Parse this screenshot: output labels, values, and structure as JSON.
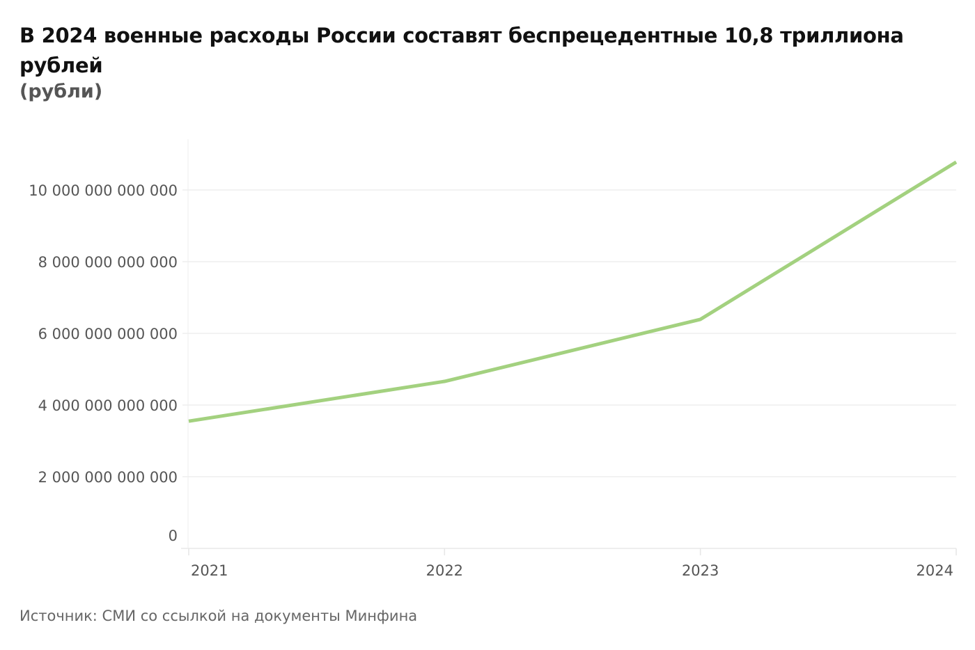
{
  "title": "В 2024 военные расходы России составят беспрецедентные 10,8 триллиона рублей",
  "subtitle": "(рубли)",
  "source": "Источник: СМИ со ссылкой на документы Минфина",
  "chart_data": {
    "type": "line",
    "title": "В 2024 военные расходы России составят беспрецедентные 10,8 триллиона рублей",
    "subtitle": "(рубли)",
    "x": [
      "2021",
      "2022",
      "2023",
      "2024"
    ],
    "series": [
      {
        "values": [
          3550000000000,
          4660000000000,
          6390000000000,
          10780000000000
        ],
        "color": "#a3d17f"
      }
    ],
    "ylim": [
      0,
      11500000000000
    ],
    "yticks": [
      0,
      2000000000000,
      4000000000000,
      6000000000000,
      8000000000000,
      10000000000000
    ],
    "ytick_labels": [
      "0",
      "2 000 000 000 000",
      "4 000 000 000 000",
      "6 000 000 000 000",
      "8 000 000 000 000",
      "10 000 000 000 000"
    ],
    "grid": true,
    "legend": "none"
  }
}
